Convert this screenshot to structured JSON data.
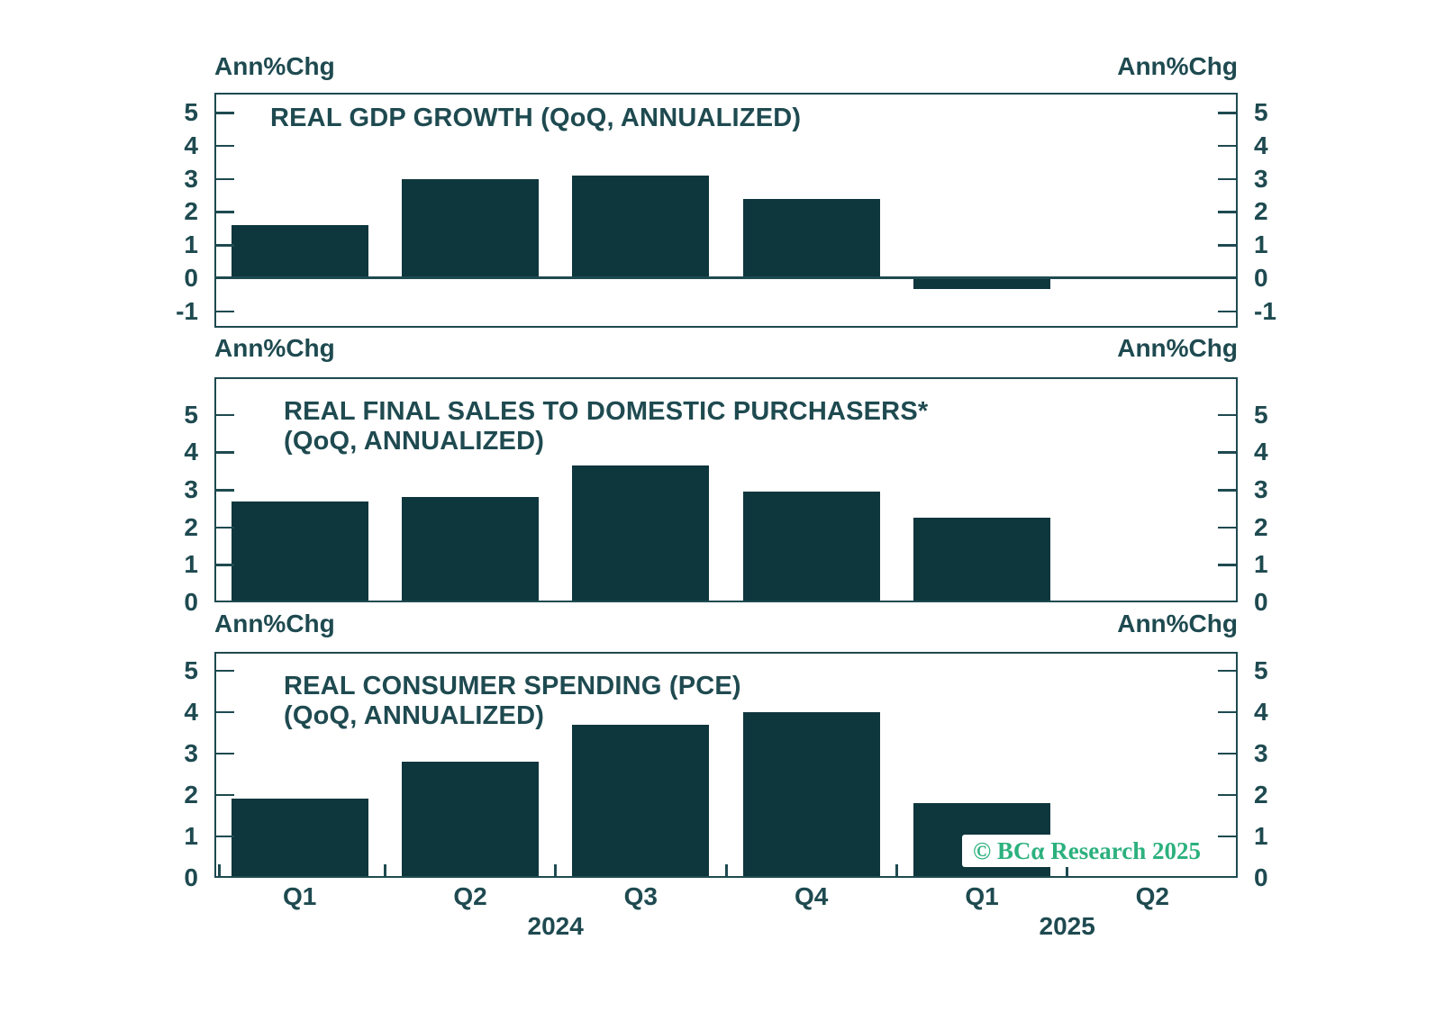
{
  "page": {
    "background": "#ffffff"
  },
  "colors": {
    "bar": "#0e363d",
    "ink": "#1e4a50",
    "watermark_green": "#2cb17e",
    "watermark_bg": "#ffffff"
  },
  "axis_unit_label": "Ann%Chg",
  "x_axis": {
    "quarter_labels": [
      "Q1",
      "Q2",
      "Q3",
      "Q4",
      "Q1",
      "Q2"
    ],
    "year_labels": [
      {
        "text": "2024",
        "slot_boundary": 2
      },
      {
        "text": "2025",
        "slot_boundary": 5
      }
    ]
  },
  "watermark": {
    "text": "© BCα Research 2025"
  },
  "chart_data": [
    {
      "type": "bar",
      "title": "REAL GDP GROWTH (QoQ, ANNUALIZED)",
      "title_lines": [
        "REAL GDP GROWTH (QoQ, ANNUALIZED)"
      ],
      "unit_label_left": "Ann%Chg",
      "unit_label_right": "Ann%Chg",
      "categories": [
        "Q1 2024",
        "Q2 2024",
        "Q3 2024",
        "Q4 2024",
        "Q1 2025",
        "Q2 2025"
      ],
      "values": [
        1.6,
        3.0,
        3.1,
        2.4,
        -0.3,
        null
      ],
      "yticks": [
        -1,
        0,
        1,
        2,
        3,
        4,
        5
      ],
      "ylim": [
        -1.5,
        5.6
      ],
      "grid": false,
      "legend": null
    },
    {
      "type": "bar",
      "title": "REAL FINAL SALES TO DOMESTIC PURCHASERS* (QoQ, ANNUALIZED)",
      "title_lines": [
        "REAL FINAL SALES TO DOMESTIC PURCHASERS*",
        "(QoQ, ANNUALIZED)"
      ],
      "unit_label_left": "Ann%Chg",
      "unit_label_right": "Ann%Chg",
      "categories": [
        "Q1 2024",
        "Q2 2024",
        "Q3 2024",
        "Q4 2024",
        "Q1 2025",
        "Q2 2025"
      ],
      "values": [
        2.7,
        2.8,
        3.65,
        2.95,
        2.25,
        null
      ],
      "yticks": [
        0,
        1,
        2,
        3,
        4,
        5
      ],
      "ylim": [
        0,
        6.0
      ],
      "grid": false,
      "legend": null
    },
    {
      "type": "bar",
      "title": "REAL CONSUMER SPENDING (PCE) (QoQ, ANNUALIZED)",
      "title_lines": [
        "REAL CONSUMER SPENDING (PCE)",
        "(QoQ, ANNUALIZED)"
      ],
      "unit_label_left": "Ann%Chg",
      "unit_label_right": "Ann%Chg",
      "categories": [
        "Q1 2024",
        "Q2 2024",
        "Q3 2024",
        "Q4 2024",
        "Q1 2025",
        "Q2 2025"
      ],
      "values": [
        1.9,
        2.8,
        3.7,
        4.0,
        1.8,
        null
      ],
      "yticks": [
        0,
        1,
        2,
        3,
        4,
        5
      ],
      "ylim": [
        0,
        5.45
      ],
      "grid": false,
      "legend": null
    }
  ]
}
